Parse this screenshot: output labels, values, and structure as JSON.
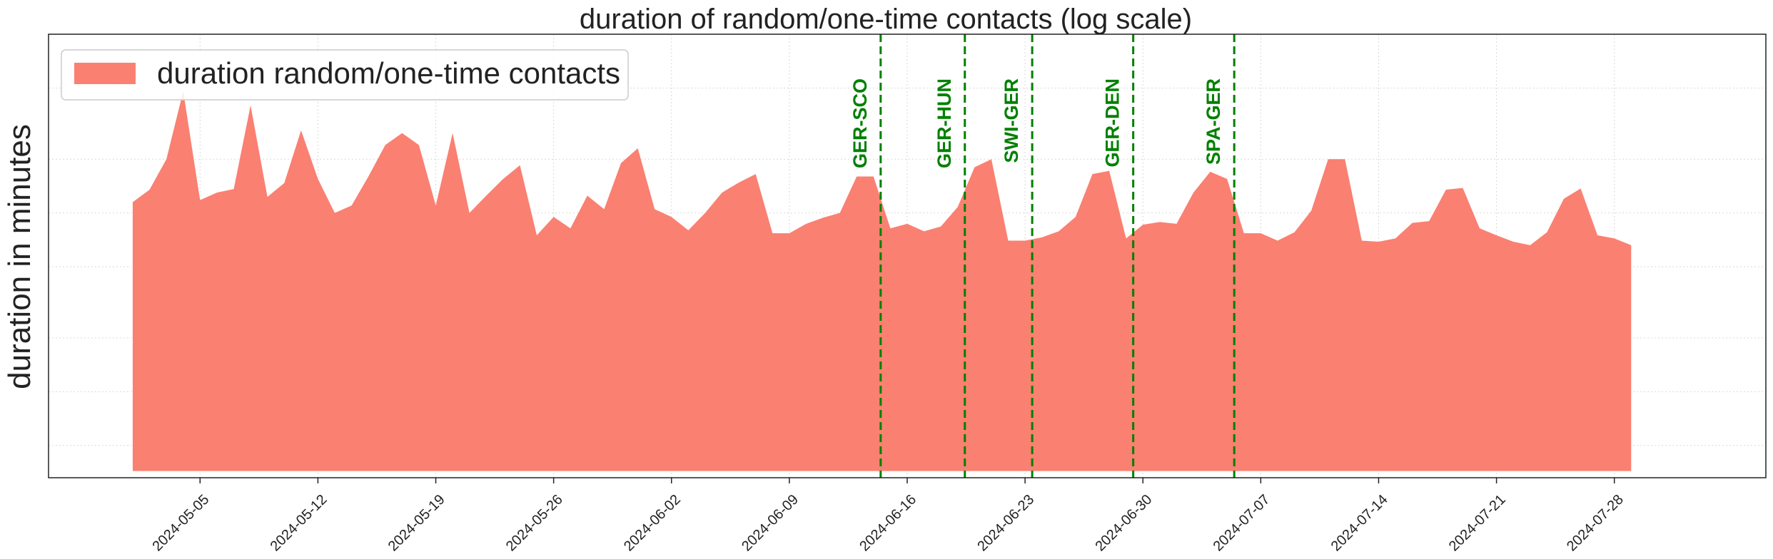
{
  "chart_data": {
    "type": "area",
    "title": "duration of random/one-time contacts (log scale)",
    "xlabel": "",
    "ylabel": "duration in minutes",
    "scale": "log",
    "grid": true,
    "legend_position": "top-left",
    "x_start": "2024-05-01",
    "xlim": [
      "2024-04-26",
      "2024-08-06"
    ],
    "ylim": [
      0.0033,
      1
    ],
    "xticks": [
      "2024-05-05",
      "2024-05-12",
      "2024-05-19",
      "2024-05-26",
      "2024-06-02",
      "2024-06-09",
      "2024-06-16",
      "2024-06-23",
      "2024-06-30",
      "2024-07-07",
      "2024-07-14",
      "2024-07-21",
      "2024-07-28"
    ],
    "colors": {
      "area": "#fa8072",
      "event": "#008000"
    },
    "series": [
      {
        "name": "duration random/one-time contacts",
        "values": [
          0.115,
          0.135,
          0.2,
          0.48,
          0.118,
          0.13,
          0.136,
          0.4,
          0.123,
          0.147,
          0.29,
          0.155,
          0.1,
          0.11,
          0.16,
          0.24,
          0.28,
          0.24,
          0.11,
          0.28,
          0.1,
          0.125,
          0.155,
          0.185,
          0.075,
          0.095,
          0.082,
          0.125,
          0.105,
          0.19,
          0.23,
          0.105,
          0.095,
          0.08,
          0.1,
          0.13,
          0.148,
          0.165,
          0.077,
          0.077,
          0.087,
          0.094,
          0.1,
          0.16,
          0.16,
          0.082,
          0.087,
          0.079,
          0.084,
          0.108,
          0.18,
          0.2,
          0.07,
          0.07,
          0.073,
          0.079,
          0.095,
          0.165,
          0.172,
          0.072,
          0.086,
          0.089,
          0.087,
          0.13,
          0.17,
          0.155,
          0.077,
          0.077,
          0.07,
          0.078,
          0.103,
          0.2,
          0.2,
          0.07,
          0.069,
          0.072,
          0.088,
          0.09,
          0.135,
          0.138,
          0.082,
          0.075,
          0.069,
          0.066,
          0.078,
          0.12,
          0.137,
          0.075,
          0.072,
          0.066
        ]
      }
    ],
    "events": [
      {
        "label": "GER-SCO",
        "date": "2024-06-14"
      },
      {
        "label": "GER-HUN",
        "date": "2024-06-19"
      },
      {
        "label": "SWI-GER",
        "date": "2024-06-23"
      },
      {
        "label": "GER-DEN",
        "date": "2024-06-29"
      },
      {
        "label": "SPA-GER",
        "date": "2024-07-05"
      }
    ]
  }
}
